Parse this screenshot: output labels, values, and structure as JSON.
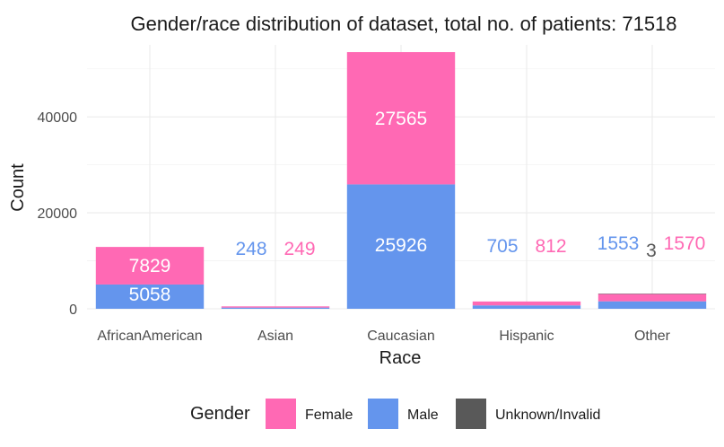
{
  "chart_data": {
    "type": "bar",
    "stacked": true,
    "title": "Gender/race distribution of dataset, total no. of patients: 71518",
    "xlabel": "Race",
    "ylabel": "Count",
    "categories": [
      "AfricanAmerican",
      "Asian",
      "Caucasian",
      "Hispanic",
      "Other"
    ],
    "series": [
      {
        "name": "Male",
        "color": "#6495ED",
        "values": [
          5058,
          248,
          25926,
          705,
          1553
        ]
      },
      {
        "name": "Female",
        "color": "#FF69B4",
        "values": [
          7829,
          249,
          27565,
          812,
          1570
        ]
      },
      {
        "name": "Unknown/Invalid",
        "color": "#595959",
        "values": [
          0,
          0,
          0,
          0,
          3
        ]
      }
    ],
    "data_labels": [
      {
        "category": "AfricanAmerican",
        "series": "Female",
        "text": "7829"
      },
      {
        "category": "AfricanAmerican",
        "series": "Male",
        "text": "5058"
      },
      {
        "category": "Asian",
        "series": "Male",
        "text": "248"
      },
      {
        "category": "Asian",
        "series": "Female",
        "text": "249"
      },
      {
        "category": "Caucasian",
        "series": "Female",
        "text": "27565"
      },
      {
        "category": "Caucasian",
        "series": "Male",
        "text": "25926"
      },
      {
        "category": "Hispanic",
        "series": "Male",
        "text": "705"
      },
      {
        "category": "Hispanic",
        "series": "Female",
        "text": "812"
      },
      {
        "category": "Other",
        "series": "Male",
        "text": "1553"
      },
      {
        "category": "Other",
        "series": "Unknown/Invalid",
        "text": "3"
      },
      {
        "category": "Other",
        "series": "Female",
        "text": "1570"
      }
    ],
    "yticks": [
      0,
      20000,
      40000
    ],
    "ylim": [
      0,
      55000
    ],
    "grid": true,
    "legend": {
      "title": "Gender",
      "position": "bottom",
      "entries": [
        "Female",
        "Male",
        "Unknown/Invalid"
      ]
    }
  }
}
